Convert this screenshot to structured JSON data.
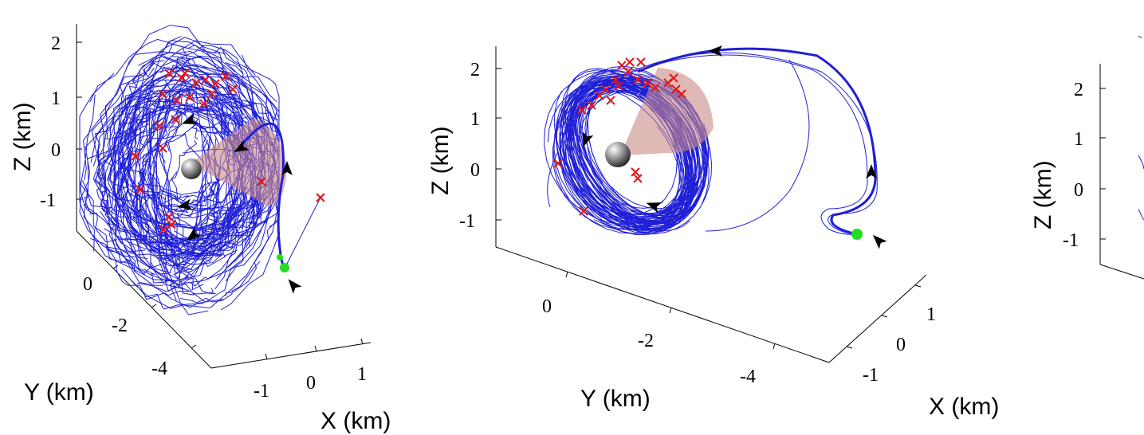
{
  "chart_data": [
    {
      "type": "line",
      "projection": "3d",
      "xlabel": "X (km)",
      "ylabel": "Y (km)",
      "zlabel": "Z (km)",
      "xticks": [
        "-1",
        "0",
        "1"
      ],
      "yticks": [
        "0",
        "-2",
        "-4"
      ],
      "zticks": [
        "2",
        "1",
        "0",
        "-1"
      ],
      "xlim": [
        -1.5,
        1.5
      ],
      "ylim": [
        -4.5,
        1
      ],
      "zlim": [
        -1.5,
        2.5
      ],
      "grid": false,
      "legend": "none",
      "marker_colors": {
        "trajectory": "#1f1fd6",
        "failure": "#e01818",
        "start": "#22dd22",
        "body": "#808080",
        "cone": "#c98b86"
      }
    },
    {
      "type": "line",
      "projection": "3d",
      "xlabel": "X (km)",
      "ylabel": "Y (km)",
      "zlabel": "Z (km)",
      "xticks": [
        "-1",
        "0",
        "1"
      ],
      "yticks": [
        "0",
        "-2",
        "-4"
      ],
      "zticks": [
        "2",
        "1",
        "0",
        "-1"
      ],
      "xlim": [
        -1.5,
        1.5
      ],
      "ylim": [
        -4.5,
        1
      ],
      "zlim": [
        -1.5,
        2.5
      ],
      "grid": false,
      "legend": "none",
      "marker_colors": {
        "trajectory": "#1f1fd6",
        "failure": "#e01818",
        "start": "#22dd22",
        "body": "#808080",
        "cone": "#c98b86"
      }
    },
    {
      "type": "line",
      "projection": "3d",
      "zlabel": "Z (km)",
      "zticks": [
        "2",
        "1",
        "0",
        "-1"
      ],
      "zlim": [
        -1.5,
        2.5
      ],
      "grid": false,
      "legend": "none"
    }
  ]
}
